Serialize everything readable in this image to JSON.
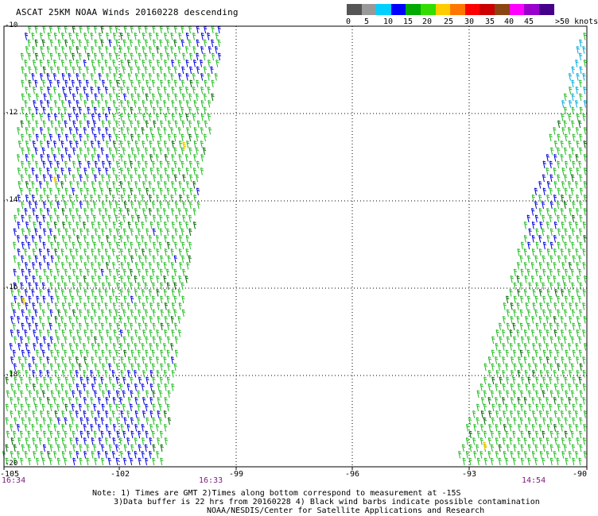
{
  "title": "ASCAT 25KM NOAA Winds 20160228 descending",
  "scale": {
    "colors": [
      "#555555",
      "#999999",
      "#00d0ff",
      "#0000ff",
      "#00aa00",
      "#33dd00",
      "#ffcc00",
      "#ff7700",
      "#ff0000",
      "#cc0000",
      "#8b4513",
      "#ff00ff",
      "#9900cc",
      "#440088"
    ],
    "labels": [
      "0",
      "5",
      "10",
      "15",
      "20",
      "25",
      "30",
      "35",
      "40",
      "45",
      ">50 knots"
    ]
  },
  "axes": {
    "y_labels": [
      "-10",
      "-12",
      "-14",
      "-16",
      "-18",
      "-20"
    ],
    "x_labels": [
      "-105",
      "-102",
      "-99",
      "-96",
      "-93",
      "-90"
    ]
  },
  "times": [
    "16:34",
    "16:33",
    "14:54"
  ],
  "notes": [
    "Note: 1) Times are GMT 2)Times along bottom correspond to measurement at -15S",
    "3)Data buffer is 22 hrs from 20160228 4) Black wind barbs indicate possible contamination",
    "NOAA/NESDIS/Center for Satellite Applications and Research"
  ],
  "barb_colors": {
    "green": "#22bb22",
    "blue": "#0000dd",
    "cyan": "#00aadd",
    "dark": "#006600",
    "yellow": "#eecc00"
  }
}
